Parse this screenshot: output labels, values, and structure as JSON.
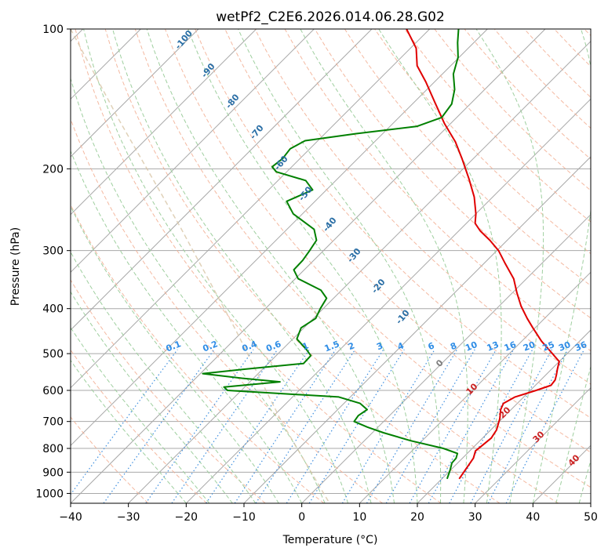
{
  "chart_data": {
    "type": "line",
    "title": "wetPf2_C2E6.2026.014.06.28.G02",
    "xlabel": "Temperature (°C)",
    "ylabel": "Pressure (hPa)",
    "xlim": [
      -40,
      50
    ],
    "ylim": [
      1050,
      100
    ],
    "x_ticks": [
      -40,
      -30,
      -20,
      -10,
      0,
      10,
      20,
      30,
      40,
      50
    ],
    "y_ticks": [
      100,
      200,
      300,
      400,
      500,
      600,
      700,
      800,
      900,
      1000
    ],
    "skew": 45,
    "series": [
      {
        "name": "Temperature",
        "color": "#e00000",
        "points": [
          {
            "p": 930,
            "t": 23.0
          },
          {
            "p": 880,
            "t": 22.4
          },
          {
            "p": 840,
            "t": 21.9
          },
          {
            "p": 810,
            "t": 21.0
          },
          {
            "p": 790,
            "t": 21.2
          },
          {
            "p": 760,
            "t": 21.5
          },
          {
            "p": 730,
            "t": 21.0
          },
          {
            "p": 690,
            "t": 19.6
          },
          {
            "p": 660,
            "t": 18.2
          },
          {
            "p": 640,
            "t": 17.6
          },
          {
            "p": 620,
            "t": 18.5
          },
          {
            "p": 600,
            "t": 21.0
          },
          {
            "p": 585,
            "t": 22.7
          },
          {
            "p": 570,
            "t": 22.5
          },
          {
            "p": 555,
            "t": 21.8
          },
          {
            "p": 540,
            "t": 21.0
          },
          {
            "p": 520,
            "t": 20.0
          },
          {
            "p": 495,
            "t": 16.8
          },
          {
            "p": 470,
            "t": 13.4
          },
          {
            "p": 440,
            "t": 9.6
          },
          {
            "p": 420,
            "t": 7.0
          },
          {
            "p": 395,
            "t": 3.8
          },
          {
            "p": 370,
            "t": 0.8
          },
          {
            "p": 345,
            "t": -2.2
          },
          {
            "p": 320,
            "t": -6.3
          },
          {
            "p": 300,
            "t": -9.7
          },
          {
            "p": 285,
            "t": -13.0
          },
          {
            "p": 272,
            "t": -16.3
          },
          {
            "p": 262,
            "t": -18.5
          },
          {
            "p": 250,
            "t": -20.0
          },
          {
            "p": 230,
            "t": -23.2
          },
          {
            "p": 210,
            "t": -27.3
          },
          {
            "p": 190,
            "t": -32.0
          },
          {
            "p": 175,
            "t": -36.0
          },
          {
            "p": 160,
            "t": -41.0
          },
          {
            "p": 145,
            "t": -46.0
          },
          {
            "p": 130,
            "t": -51.5
          },
          {
            "p": 120,
            "t": -55.8
          },
          {
            "p": 110,
            "t": -59.0
          },
          {
            "p": 100,
            "t": -64.0
          }
        ]
      },
      {
        "name": "Dewpoint",
        "color": "#008000",
        "points": [
          {
            "p": 930,
            "t": 20.9
          },
          {
            "p": 890,
            "t": 19.9
          },
          {
            "p": 860,
            "t": 19.0
          },
          {
            "p": 840,
            "t": 18.9
          },
          {
            "p": 820,
            "t": 18.3
          },
          {
            "p": 800,
            "t": 15.0
          },
          {
            "p": 770,
            "t": 8.0
          },
          {
            "p": 740,
            "t": 1.9
          },
          {
            "p": 720,
            "t": -1.8
          },
          {
            "p": 700,
            "t": -5.1
          },
          {
            "p": 680,
            "t": -5.4
          },
          {
            "p": 660,
            "t": -4.9
          },
          {
            "p": 640,
            "t": -7.2
          },
          {
            "p": 620,
            "t": -12.0
          },
          {
            "p": 600,
            "t": -32.4
          },
          {
            "p": 590,
            "t": -33.6
          },
          {
            "p": 575,
            "t": -24.8
          },
          {
            "p": 565,
            "t": -32.0
          },
          {
            "p": 552,
            "t": -39.6
          },
          {
            "p": 540,
            "t": -33.0
          },
          {
            "p": 525,
            "t": -23.9
          },
          {
            "p": 505,
            "t": -24.0
          },
          {
            "p": 490,
            "t": -25.8
          },
          {
            "p": 465,
            "t": -29.3
          },
          {
            "p": 440,
            "t": -30.5
          },
          {
            "p": 420,
            "t": -29.6
          },
          {
            "p": 400,
            "t": -30.5
          },
          {
            "p": 380,
            "t": -31.2
          },
          {
            "p": 365,
            "t": -33.6
          },
          {
            "p": 345,
            "t": -39.5
          },
          {
            "p": 330,
            "t": -41.8
          },
          {
            "p": 315,
            "t": -41.9
          },
          {
            "p": 300,
            "t": -42.4
          },
          {
            "p": 285,
            "t": -43.0
          },
          {
            "p": 270,
            "t": -45.3
          },
          {
            "p": 250,
            "t": -51.6
          },
          {
            "p": 235,
            "t": -54.9
          },
          {
            "p": 222,
            "t": -52.4
          },
          {
            "p": 212,
            "t": -55.2
          },
          {
            "p": 203,
            "t": -61.8
          },
          {
            "p": 198,
            "t": -63.4
          },
          {
            "p": 190,
            "t": -63.0
          },
          {
            "p": 181,
            "t": -63.4
          },
          {
            "p": 174,
            "t": -62.2
          },
          {
            "p": 168,
            "t": -54.6
          },
          {
            "p": 162,
            "t": -45.3
          },
          {
            "p": 155,
            "t": -42.6
          },
          {
            "p": 145,
            "t": -43.2
          },
          {
            "p": 135,
            "t": -45.2
          },
          {
            "p": 125,
            "t": -48.1
          },
          {
            "p": 115,
            "t": -50.2
          },
          {
            "p": 107,
            "t": -52.8
          },
          {
            "p": 100,
            "t": -55.0
          }
        ]
      }
    ],
    "dry_adiabat_labels": [
      "-100",
      "-90",
      "-80",
      "-70",
      "-60",
      "-50",
      "-40",
      "-30",
      "-20",
      "-10"
    ],
    "moist_adiabat_labels": [
      "0",
      "10",
      "20",
      "30",
      "40"
    ],
    "mixing_ratio_labels": [
      "0.1",
      "0.2",
      "0.4",
      "0.6",
      "1",
      "1.5",
      "2",
      "3",
      "4",
      "6",
      "8",
      "10",
      "13",
      "16",
      "20",
      "25",
      "30",
      "36"
    ]
  },
  "colors": {
    "temperature": "#e00000",
    "dewpoint": "#008000",
    "isotherm": "#a8a8a8",
    "isobar": "#a8a8a8",
    "dry_adiabat": "#f2ad90",
    "moist_adiabat": "#9fcf9f",
    "mixing_ratio": "#3f8fdf",
    "dry_label": "#2b6fa6",
    "mix_label": "#2f8de6",
    "moist_label": "#cc2222",
    "special_curve": "#d8c5a6"
  }
}
